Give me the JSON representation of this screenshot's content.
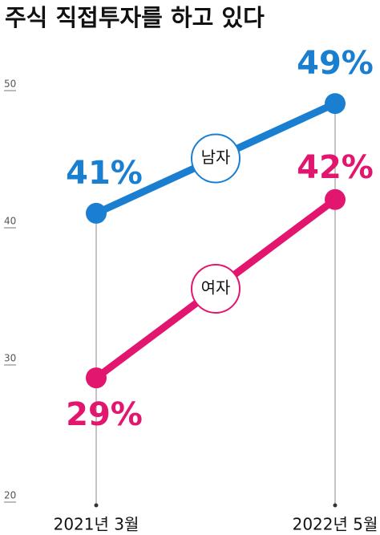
{
  "chart_data": {
    "type": "line",
    "title": "주식 직접투자를 하고 있다",
    "categories": [
      "2021년 3월",
      "2022년 5월"
    ],
    "series": [
      {
        "name": "남자",
        "color": "#1a7fd0",
        "values": [
          41,
          49
        ],
        "value_labels": [
          "41%",
          "49%"
        ]
      },
      {
        "name": "여자",
        "color": "#e2166e",
        "values": [
          29,
          42
        ],
        "value_labels": [
          "29%",
          "42%"
        ]
      }
    ],
    "ylim": [
      20,
      50
    ],
    "yticks": [
      20,
      30,
      40,
      50
    ],
    "grid": false
  }
}
